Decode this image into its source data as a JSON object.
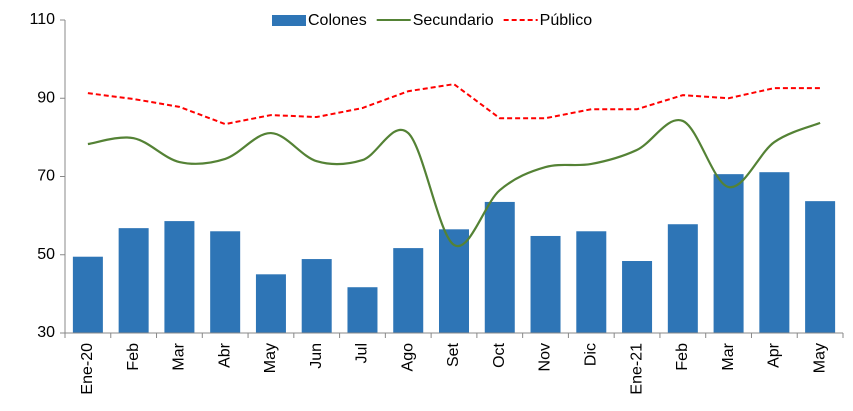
{
  "chart_data": {
    "type": "bar",
    "categories": [
      "Ene-20",
      "Feb",
      "Mar",
      "Abr",
      "May",
      "Jun",
      "Jul",
      "Ago",
      "Set",
      "Oct",
      "Nov",
      "Dic",
      "Ene-21",
      "Feb",
      "Mar",
      "Apr",
      "May"
    ],
    "series": [
      {
        "name": "Colones",
        "type": "bar",
        "color": "#2e75b6",
        "values": [
          49.5,
          56.8,
          58.6,
          56,
          45,
          48.9,
          41.7,
          51.7,
          56.5,
          63.5,
          54.8,
          56,
          48.4,
          57.8,
          70.6,
          71.1,
          63.7
        ]
      },
      {
        "name": "Secundario",
        "type": "line",
        "smooth": true,
        "color": "#548235",
        "values": [
          78.3,
          79.8,
          73.7,
          74.5,
          81.1,
          73.9,
          74.2,
          81.1,
          52.5,
          66.5,
          72.4,
          73.2,
          76.8,
          84.2,
          67.3,
          78.8,
          83.7
        ]
      },
      {
        "name": "Público",
        "type": "line",
        "dashed": true,
        "color": "#ff0000",
        "values": [
          91.3,
          89.8,
          87.8,
          83.4,
          85.7,
          85.2,
          87.5,
          91.8,
          93.6,
          84.9,
          84.9,
          87.2,
          87.2,
          90.8,
          90,
          92.6,
          92.6
        ]
      }
    ],
    "ylim": [
      30,
      110
    ],
    "yticks": [
      30,
      50,
      70,
      90,
      110
    ],
    "grid": false,
    "legend": "top"
  }
}
